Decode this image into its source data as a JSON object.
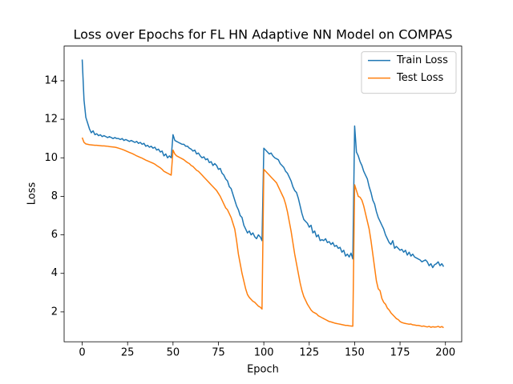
{
  "chart_data": {
    "type": "line",
    "title": "Loss over Epochs for FL HN Adaptive NN Model on COMPAS",
    "x_label": "Epoch",
    "y_label": "Loss",
    "x": [
      0,
      1,
      2,
      3,
      4,
      5,
      6,
      7,
      8,
      9,
      10,
      11,
      12,
      13,
      14,
      15,
      16,
      17,
      18,
      19,
      20,
      21,
      22,
      23,
      24,
      25,
      26,
      27,
      28,
      29,
      30,
      31,
      32,
      33,
      34,
      35,
      36,
      37,
      38,
      39,
      40,
      41,
      42,
      43,
      44,
      45,
      46,
      47,
      48,
      49,
      50,
      51,
      52,
      53,
      54,
      55,
      56,
      57,
      58,
      59,
      60,
      61,
      62,
      63,
      64,
      65,
      66,
      67,
      68,
      69,
      70,
      71,
      72,
      73,
      74,
      75,
      76,
      77,
      78,
      79,
      80,
      81,
      82,
      83,
      84,
      85,
      86,
      87,
      88,
      89,
      90,
      91,
      92,
      93,
      94,
      95,
      96,
      97,
      98,
      99,
      100,
      101,
      102,
      103,
      104,
      105,
      106,
      107,
      108,
      109,
      110,
      111,
      112,
      113,
      114,
      115,
      116,
      117,
      118,
      119,
      120,
      121,
      122,
      123,
      124,
      125,
      126,
      127,
      128,
      129,
      130,
      131,
      132,
      133,
      134,
      135,
      136,
      137,
      138,
      139,
      140,
      141,
      142,
      143,
      144,
      145,
      146,
      147,
      148,
      149,
      150,
      151,
      152,
      153,
      154,
      155,
      156,
      157,
      158,
      159,
      160,
      161,
      162,
      163,
      164,
      165,
      166,
      167,
      168,
      169,
      170,
      171,
      172,
      173,
      174,
      175,
      176,
      177,
      178,
      179,
      180,
      181,
      182,
      183,
      184,
      185,
      186,
      187,
      188,
      189,
      190,
      191,
      192,
      193,
      194,
      195,
      196,
      197,
      198,
      199
    ],
    "series": [
      {
        "name": "Train Loss",
        "color": "#1f77b4",
        "values": [
          15.1,
          13.0,
          12.1,
          11.8,
          11.5,
          11.3,
          11.4,
          11.2,
          11.25,
          11.15,
          11.2,
          11.1,
          11.15,
          11.1,
          11.05,
          11.1,
          11.05,
          11.0,
          11.05,
          11.0,
          11.0,
          10.95,
          11.0,
          10.9,
          10.95,
          10.9,
          10.85,
          10.9,
          10.85,
          10.8,
          10.85,
          10.75,
          10.8,
          10.7,
          10.75,
          10.6,
          10.65,
          10.55,
          10.6,
          10.5,
          10.55,
          10.4,
          10.45,
          10.3,
          10.35,
          10.1,
          10.2,
          10.0,
          10.1,
          10.0,
          11.2,
          10.9,
          10.85,
          10.8,
          10.75,
          10.7,
          10.7,
          10.6,
          10.6,
          10.5,
          10.45,
          10.35,
          10.4,
          10.2,
          10.25,
          10.1,
          10.0,
          10.05,
          9.9,
          9.95,
          9.75,
          9.8,
          9.6,
          9.7,
          9.6,
          9.4,
          9.45,
          9.2,
          9.1,
          8.9,
          8.8,
          8.5,
          8.4,
          8.1,
          7.8,
          7.5,
          7.3,
          7.0,
          6.9,
          6.5,
          6.3,
          6.1,
          6.2,
          6.0,
          6.1,
          5.9,
          5.8,
          6.0,
          5.9,
          5.7,
          10.5,
          10.4,
          10.3,
          10.2,
          10.25,
          10.1,
          10.0,
          9.95,
          9.9,
          9.7,
          9.6,
          9.5,
          9.3,
          9.2,
          9.0,
          8.8,
          8.5,
          8.3,
          8.2,
          7.9,
          7.5,
          7.1,
          6.8,
          6.7,
          6.6,
          6.4,
          6.5,
          6.1,
          6.2,
          5.9,
          6.0,
          5.7,
          5.75,
          5.7,
          5.8,
          5.6,
          5.65,
          5.5,
          5.6,
          5.4,
          5.45,
          5.3,
          5.35,
          5.1,
          5.2,
          4.9,
          5.0,
          4.85,
          5.05,
          4.75,
          11.65,
          10.3,
          10.1,
          9.8,
          9.6,
          9.3,
          9.1,
          8.9,
          8.5,
          8.2,
          7.8,
          7.6,
          7.2,
          6.9,
          6.7,
          6.5,
          6.3,
          6.0,
          5.8,
          5.6,
          5.5,
          5.7,
          5.3,
          5.4,
          5.3,
          5.2,
          5.25,
          5.1,
          5.2,
          4.95,
          5.1,
          4.9,
          5.0,
          4.85,
          4.8,
          4.75,
          4.7,
          4.6,
          4.65,
          4.7,
          4.6,
          4.4,
          4.5,
          4.3,
          4.45,
          4.5,
          4.6,
          4.4,
          4.5,
          4.35
        ]
      },
      {
        "name": "Test Loss",
        "color": "#ff7f0e",
        "values": [
          11.05,
          10.8,
          10.72,
          10.7,
          10.68,
          10.67,
          10.66,
          10.65,
          10.65,
          10.64,
          10.63,
          10.62,
          10.62,
          10.61,
          10.6,
          10.58,
          10.57,
          10.56,
          10.55,
          10.53,
          10.5,
          10.47,
          10.44,
          10.4,
          10.36,
          10.32,
          10.28,
          10.24,
          10.2,
          10.15,
          10.1,
          10.06,
          10.02,
          9.98,
          9.93,
          9.88,
          9.84,
          9.8,
          9.76,
          9.72,
          9.67,
          9.6,
          9.54,
          9.48,
          9.4,
          9.3,
          9.25,
          9.2,
          9.15,
          9.1,
          10.4,
          10.2,
          10.1,
          10.05,
          10.0,
          9.95,
          9.9,
          9.82,
          9.75,
          9.7,
          9.6,
          9.55,
          9.45,
          9.35,
          9.3,
          9.2,
          9.1,
          9.0,
          8.9,
          8.8,
          8.7,
          8.6,
          8.5,
          8.4,
          8.3,
          8.15,
          8.0,
          7.8,
          7.6,
          7.4,
          7.3,
          7.1,
          6.9,
          6.6,
          6.3,
          5.7,
          5.0,
          4.5,
          4.0,
          3.6,
          3.2,
          2.9,
          2.75,
          2.65,
          2.55,
          2.5,
          2.4,
          2.3,
          2.25,
          2.15,
          9.4,
          9.3,
          9.2,
          9.1,
          9.0,
          8.9,
          8.8,
          8.7,
          8.5,
          8.3,
          8.1,
          7.9,
          7.6,
          7.2,
          6.7,
          6.2,
          5.6,
          5.0,
          4.5,
          4.0,
          3.5,
          3.1,
          2.8,
          2.6,
          2.4,
          2.25,
          2.1,
          2.0,
          1.95,
          1.9,
          1.8,
          1.75,
          1.7,
          1.65,
          1.6,
          1.55,
          1.5,
          1.48,
          1.45,
          1.42,
          1.4,
          1.38,
          1.36,
          1.34,
          1.32,
          1.3,
          1.3,
          1.28,
          1.27,
          1.26,
          8.6,
          8.3,
          8.0,
          7.95,
          7.8,
          7.5,
          7.1,
          6.7,
          6.3,
          5.7,
          5.0,
          4.3,
          3.6,
          3.2,
          3.1,
          2.7,
          2.5,
          2.4,
          2.2,
          2.1,
          1.95,
          1.85,
          1.75,
          1.65,
          1.6,
          1.5,
          1.45,
          1.42,
          1.4,
          1.38,
          1.36,
          1.37,
          1.33,
          1.32,
          1.3,
          1.3,
          1.28,
          1.25,
          1.27,
          1.24,
          1.22,
          1.25,
          1.2,
          1.23,
          1.21,
          1.22,
          1.25,
          1.2,
          1.24,
          1.18
        ]
      }
    ],
    "xlim": [
      -9.95,
      208.95
    ],
    "ylim": [
      0.45,
      15.8
    ],
    "xticks": [
      0,
      25,
      50,
      75,
      100,
      125,
      150,
      175,
      200
    ],
    "yticks": [
      2,
      4,
      6,
      8,
      10,
      12,
      14
    ],
    "legend": "upper right"
  }
}
